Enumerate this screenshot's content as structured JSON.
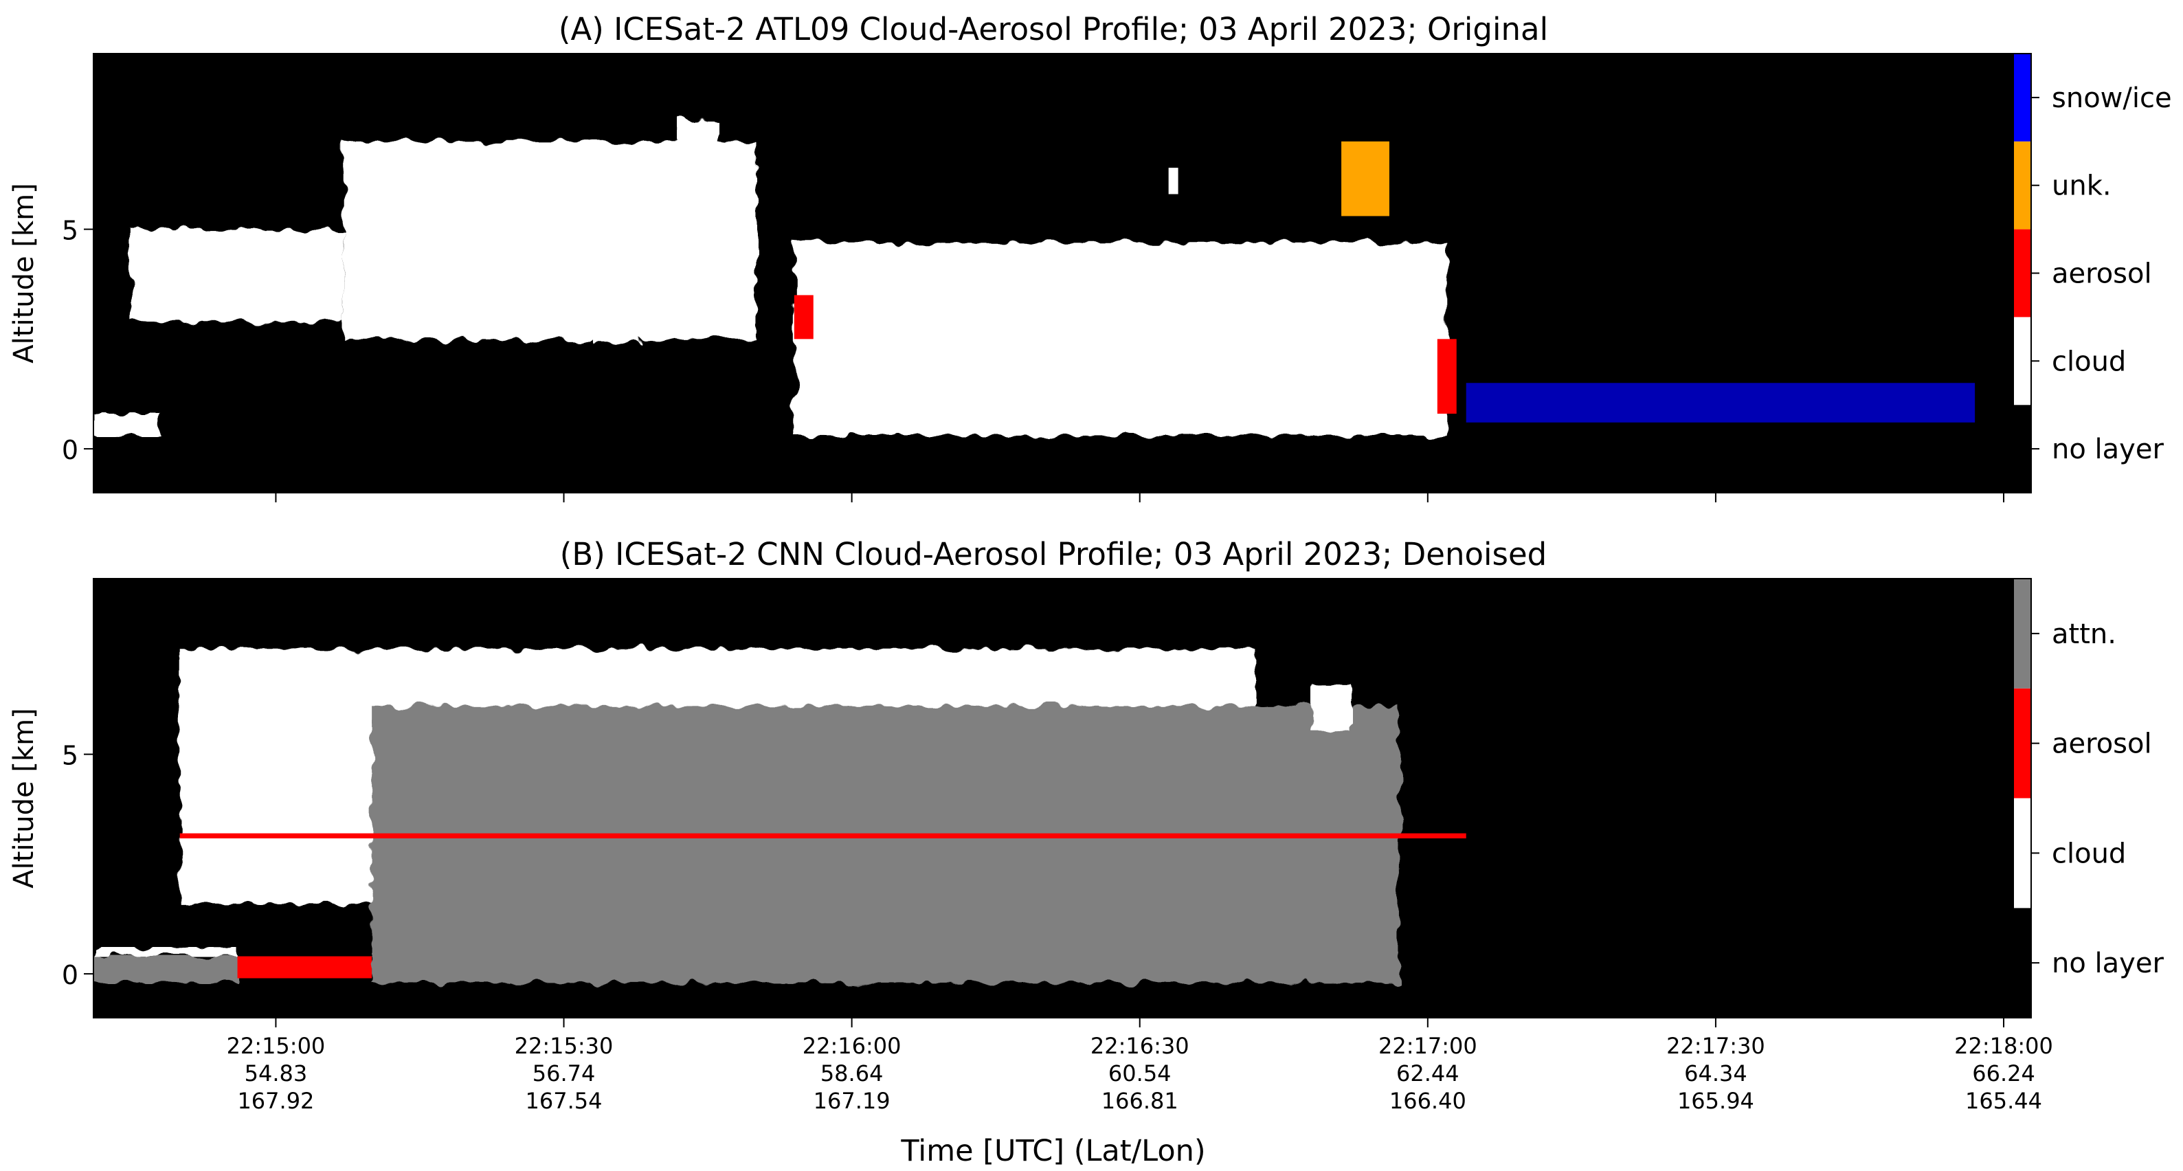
{
  "chart_data": [
    {
      "type": "heatmap",
      "panel": "A",
      "title": "(A) ICESat-2 ATL09 Cloud-Aerosol Profile; 03 April 2023; Original",
      "ylabel": "Altitude [km]",
      "ylim": [
        -1,
        9
      ],
      "yticks": [
        0,
        5
      ],
      "xlim_utc": [
        "22:14:41",
        "22:18:01"
      ],
      "xticks_utc": [
        "22:15:00",
        "22:15:30",
        "22:16:00",
        "22:16:30",
        "22:17:00",
        "22:17:30",
        "22:18:00"
      ],
      "xticklabels_shown": false,
      "colorbar": {
        "categories": [
          "no layer",
          "cloud",
          "aerosol",
          "unk.",
          "snow/ice"
        ],
        "colors": [
          "#000000",
          "#ffffff",
          "#ff0000",
          "#ffa500",
          "#0000ff"
        ]
      },
      "layers": [
        {
          "class": "cloud",
          "start": "22:14:41",
          "end": "22:14:48",
          "base_km": 0.3,
          "top_km": 0.8
        },
        {
          "class": "cloud",
          "start": "22:14:45",
          "end": "22:15:07",
          "base_km": 2.9,
          "top_km": 5.0,
          "aerosol_streaks": true
        },
        {
          "class": "cloud",
          "start": "22:15:07",
          "end": "22:15:50",
          "base_km": 2.5,
          "top_km": 7.0
        },
        {
          "class": "cloud",
          "start": "22:15:42",
          "end": "22:15:46",
          "base_km": 5.3,
          "top_km": 7.5
        },
        {
          "class": "cloud",
          "start": "22:15:33",
          "end": "22:15:38",
          "base_km": 2.4,
          "top_km": 3.7
        },
        {
          "class": "cloud",
          "start": "22:15:54",
          "end": "22:17:02",
          "base_km": 0.3,
          "top_km": 4.7
        },
        {
          "class": "aerosol",
          "start": "22:15:54",
          "end": "22:15:56",
          "base_km": 2.5,
          "top_km": 3.5
        },
        {
          "class": "aerosol",
          "start": "22:17:01",
          "end": "22:17:03",
          "base_km": 0.8,
          "top_km": 2.5
        },
        {
          "class": "cloud",
          "start": "22:16:33",
          "end": "22:16:34",
          "base_km": 5.8,
          "top_km": 6.4
        },
        {
          "class": "unk.",
          "start": "22:16:51",
          "end": "22:16:56",
          "base_km": 5.3,
          "top_km": 7.0
        },
        {
          "class": "snow/ice",
          "start": "22:17:04",
          "end": "22:17:57",
          "base_km": 0.6,
          "top_km": 1.5,
          "sparse": true
        }
      ]
    },
    {
      "type": "heatmap",
      "panel": "B",
      "title": "(B) ICESat-2 CNN Cloud-Aerosol Profile; 03 April 2023; Denoised",
      "ylabel": "Altitude [km]",
      "xlabel": "Time [UTC] (Lat/Lon)",
      "ylim": [
        -1,
        9
      ],
      "yticks": [
        0,
        5
      ],
      "xlim_utc": [
        "22:14:41",
        "22:18:01"
      ],
      "xticks": [
        {
          "utc": "22:15:00",
          "lat": "54.83",
          "lon": "167.92"
        },
        {
          "utc": "22:15:30",
          "lat": "56.74",
          "lon": "167.54"
        },
        {
          "utc": "22:16:00",
          "lat": "58.64",
          "lon": "167.19"
        },
        {
          "utc": "22:16:30",
          "lat": "60.54",
          "lon": "166.81"
        },
        {
          "utc": "22:17:00",
          "lat": "62.44",
          "lon": "166.40"
        },
        {
          "utc": "22:17:30",
          "lat": "64.34",
          "lon": "165.94"
        },
        {
          "utc": "22:18:00",
          "lat": "66.24",
          "lon": "165.44"
        }
      ],
      "colorbar": {
        "categories": [
          "no layer",
          "cloud",
          "aerosol",
          "attn."
        ],
        "colors": [
          "#000000",
          "#ffffff",
          "#ff0000",
          "#808080"
        ]
      },
      "layers": [
        {
          "class": "cloud",
          "start": "22:14:41",
          "end": "22:14:56",
          "base_km": 0.4,
          "top_km": 0.6
        },
        {
          "class": "attn.",
          "start": "22:14:41",
          "end": "22:14:56",
          "base_km": -0.2,
          "top_km": 0.4
        },
        {
          "class": "aerosol",
          "start": "22:14:56",
          "end": "22:15:10",
          "base_km": -0.1,
          "top_km": 0.4
        },
        {
          "class": "cloud",
          "start": "22:14:50",
          "end": "22:16:42",
          "base_km": 1.6,
          "top_km": 7.4
        },
        {
          "class": "attn.",
          "start": "22:15:10",
          "end": "22:16:57",
          "base_km": -0.2,
          "top_km": 6.1
        },
        {
          "class": "aerosol",
          "start": "22:14:50",
          "end": "22:17:04",
          "base_km": 0.9,
          "top_km": 3.2,
          "thin_band_under_cloud": true
        },
        {
          "class": "cloud",
          "start": "22:16:48",
          "end": "22:16:52",
          "base_km": 5.5,
          "top_km": 6.6
        }
      ]
    }
  ]
}
